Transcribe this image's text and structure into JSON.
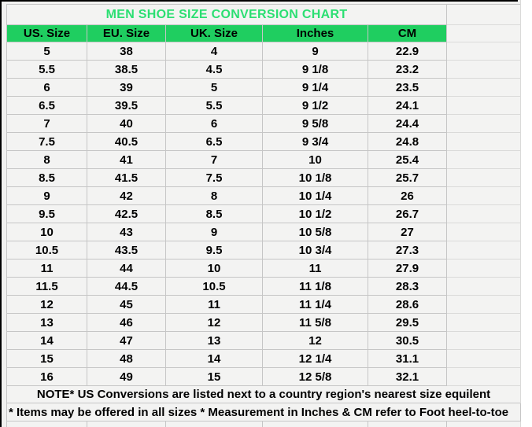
{
  "sheet": {
    "title": "MEN SHOE SIZE CONVERSION CHART",
    "columns": [
      "US. Size",
      "EU. Size",
      "UK. Size",
      "Inches",
      "CM"
    ],
    "rows": [
      [
        "5",
        "38",
        "4",
        "9",
        "22.9"
      ],
      [
        "5.5",
        "38.5",
        "4.5",
        "9 1/8",
        "23.2"
      ],
      [
        "6",
        "39",
        "5",
        "9 1/4",
        "23.5"
      ],
      [
        "6.5",
        "39.5",
        "5.5",
        "9 1/2",
        "24.1"
      ],
      [
        "7",
        "40",
        "6",
        "9 5/8",
        "24.4"
      ],
      [
        "7.5",
        "40.5",
        "6.5",
        "9 3/4",
        "24.8"
      ],
      [
        "8",
        "41",
        "7",
        "10",
        "25.4"
      ],
      [
        "8.5",
        "41.5",
        "7.5",
        "10 1/8",
        "25.7"
      ],
      [
        "9",
        "42",
        "8",
        "10 1/4",
        "26"
      ],
      [
        "9.5",
        "42.5",
        "8.5",
        "10 1/2",
        "26.7"
      ],
      [
        "10",
        "43",
        "9",
        "10 5/8",
        "27"
      ],
      [
        "10.5",
        "43.5",
        "9.5",
        "10 3/4",
        "27.3"
      ],
      [
        "11",
        "44",
        "10",
        "11",
        "27.9"
      ],
      [
        "11.5",
        "44.5",
        "10.5",
        "11 1/8",
        "28.3"
      ],
      [
        "12",
        "45",
        "11",
        "11 1/4",
        "28.6"
      ],
      [
        "13",
        "46",
        "12",
        "11 5/8",
        "29.5"
      ],
      [
        "14",
        "47",
        "13",
        "12",
        "30.5"
      ],
      [
        "15",
        "48",
        "14",
        "12 1/4",
        "31.1"
      ],
      [
        "16",
        "49",
        "15",
        "12 5/8",
        "32.1"
      ]
    ],
    "note_primary": "NOTE* US Conversions are listed next to a country region's nearest size equilent",
    "note_secondary": "* Items may be offered in all sizes * Measurement in Inches & CM refer to Foot heel-to-toe"
  },
  "colors": {
    "title_text": "#2BDF72",
    "header_fill": "#1FCE60"
  }
}
